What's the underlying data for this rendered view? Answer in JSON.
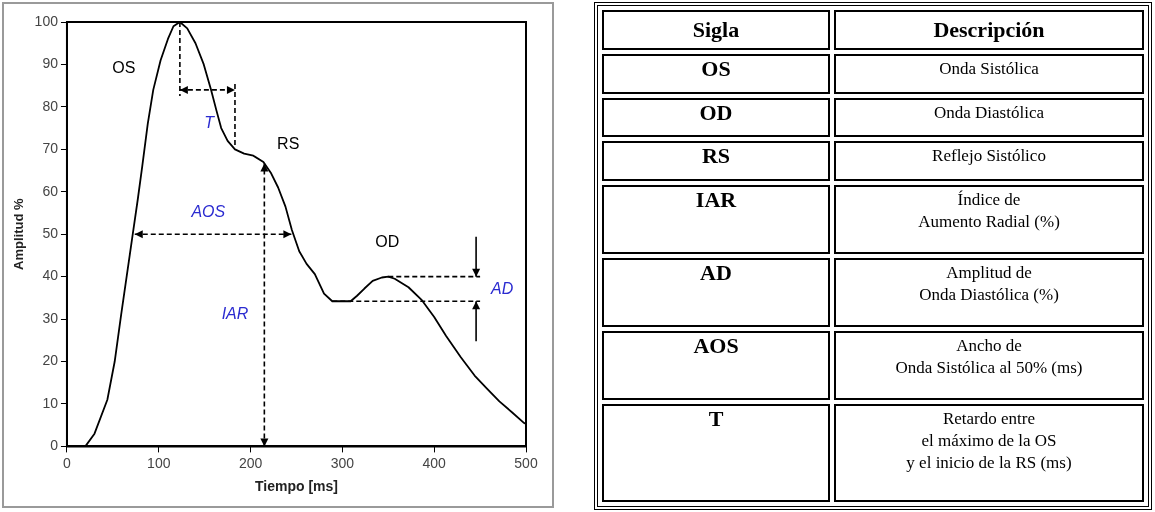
{
  "chart_data": [
    {
      "type": "line",
      "xlabel": "Tiempo [ms]",
      "ylabel": "Amplitud %",
      "x": [
        0,
        20,
        30,
        44,
        52,
        59,
        65,
        71,
        77,
        82,
        88,
        94,
        102,
        110,
        116,
        123,
        131,
        140,
        149,
        157,
        163,
        168,
        175,
        183,
        193,
        203,
        214,
        222,
        230,
        238,
        245,
        253,
        261,
        270,
        280,
        289,
        309,
        316,
        324,
        333,
        343,
        350,
        357,
        372,
        386,
        400,
        413,
        429,
        444,
        458,
        471,
        485,
        498,
        500
      ],
      "series": [
        {
          "color": "#000000",
          "values": [
            0,
            0,
            3,
            11,
            20,
            31,
            40,
            49,
            58,
            66,
            76,
            84,
            91,
            96,
            99,
            100,
            98.5,
            95,
            90,
            84,
            79,
            75,
            72,
            70,
            69,
            68.5,
            67,
            64.5,
            61,
            56.5,
            51,
            46,
            43,
            40.6,
            36,
            34.2,
            34.2,
            35.5,
            37.2,
            39,
            39.8,
            40,
            39.5,
            37.5,
            34.6,
            30.5,
            26,
            21,
            16.7,
            13.5,
            10.6,
            8,
            5.5,
            5.3
          ]
        }
      ],
      "xlim": [
        0,
        500
      ],
      "xticks": [
        0,
        100,
        200,
        300,
        400,
        500
      ],
      "ylim": [
        0,
        100
      ],
      "yticks": [
        0,
        10,
        20,
        30,
        40,
        50,
        60,
        70,
        80,
        90,
        100
      ],
      "grid": false,
      "legend": false,
      "annotations": [
        "OS",
        "T",
        "RS",
        "AOS",
        "IAR",
        "OD",
        "AD"
      ]
    },
    {
      "type": "other",
      "annotations": [
        "Sigla",
        "Descripción",
        "OS",
        "Onda Sistólica",
        "OD",
        "Onda Diastólica",
        "RS",
        "Reflejo Sistólico",
        "IAR",
        "Índice de\nAumento Radial (%)",
        "AD",
        "Amplitud de\nOnda Diastólica (%)",
        "AOS",
        "Ancho de\nOnda Sistólica al 50% (ms)",
        "T",
        "Retardo entre\nel máximo de la OS\ny el inicio de la RS (ms)"
      ]
    }
  ]
}
